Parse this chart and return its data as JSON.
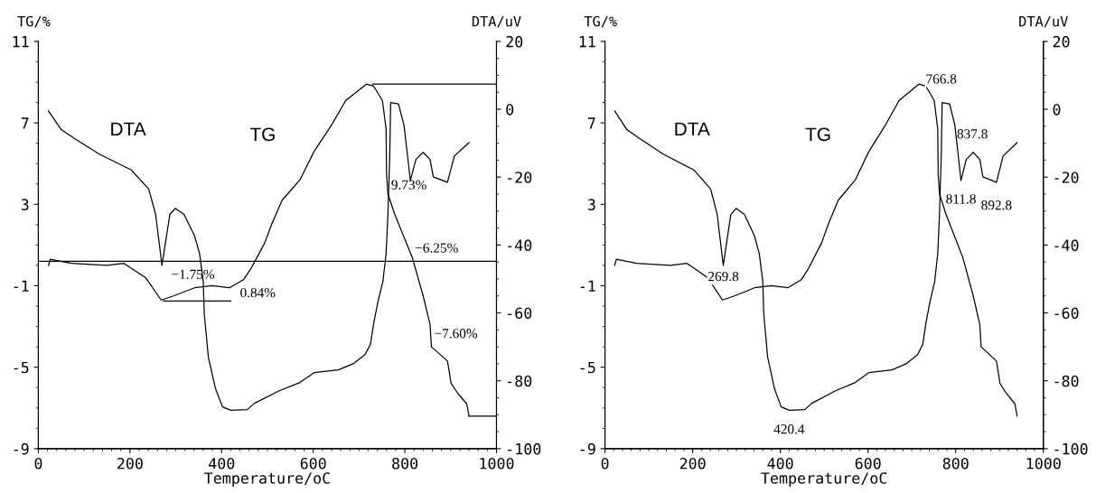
{
  "chart_data": [
    {
      "type": "line",
      "xlabel": "Temperature/oC",
      "ylabel": "TG/%",
      "y2label": "DTA/uV",
      "xlim": [
        0,
        1000
      ],
      "xticks": [
        0,
        200,
        400,
        600,
        800,
        1000
      ],
      "ylim": [
        -9,
        11
      ],
      "yticks": [
        -9,
        -5,
        -1,
        3,
        7,
        11
      ],
      "y2lim": [
        -100,
        20
      ],
      "y2ticks": [
        -100,
        -80,
        -60,
        -40,
        -20,
        0,
        20
      ],
      "grid": false,
      "legend": false,
      "series": [
        {
          "name": "DTA",
          "axis": "y2",
          "color": "#000000",
          "x": [
            22,
            50,
            80,
            134,
            203,
            241,
            256,
            269.8,
            287,
            299,
            318,
            341,
            352,
            360,
            362,
            371,
            387,
            402,
            420,
            456,
            471,
            525,
            571,
            602,
            655,
            687,
            713,
            725,
            732,
            741,
            752,
            759,
            763,
            767,
            769,
            786,
            798,
            805,
            812,
            824,
            840,
            855,
            862,
            893,
            908,
            940
          ],
          "values": [
            -0.5,
            -6,
            -8.7,
            -13.3,
            -17.9,
            -23.5,
            -31,
            -46,
            -31,
            -29.2,
            -31,
            -37.3,
            -42.6,
            -50.8,
            -60,
            -73,
            -82.5,
            -87.7,
            -88.7,
            -88.5,
            -86.7,
            -83,
            -80.5,
            -77.6,
            -76.8,
            -75,
            -72.3,
            -69.2,
            -63,
            -56.9,
            -50.8,
            -42.6,
            -31,
            -13.8,
            2,
            1.6,
            -4.6,
            -12.7,
            -21,
            -14.8,
            -12.7,
            -14.8,
            -19.9,
            -21.5,
            -13.8,
            -9.8
          ]
        },
        {
          "name": "TG",
          "color": "#000000",
          "x": [
            22,
            26,
            72,
            149,
            187,
            234,
            268,
            295,
            341,
            379,
            417,
            448,
            463,
            494,
            509,
            532,
            571,
            602,
            640,
            671,
            716,
            732,
            751,
            759,
            760,
            763,
            778,
            816,
            840,
            855,
            858,
            893,
            901,
            916,
            935,
            940
          ],
          "values": [
            0,
            0.3,
            0.1,
            0,
            0.1,
            -0.6,
            -1.7,
            -1.5,
            -1.1,
            -1,
            -1.1,
            -0.7,
            -0.2,
            1.1,
            2,
            3.2,
            4.2,
            5.6,
            6.9,
            8.1,
            8.9,
            8.8,
            8.1,
            6.7,
            4.5,
            3.5,
            2.5,
            0.4,
            -1.5,
            -2.9,
            -4,
            -4.7,
            -5.8,
            -6.3,
            -6.8,
            -7.4
          ]
        },
        {
          "type": "line",
          "color": "#000000",
          "x": [
            730,
            1000
          ],
          "values": [
            8.9,
            8.9
          ]
        },
        {
          "type": "line",
          "color": "#000000",
          "x": [
            273,
            420
          ],
          "values": [
            -1.75,
            -1.75
          ]
        },
        {
          "type": "line",
          "color": "#000000",
          "x": [
            940,
            1000
          ],
          "values": [
            -7.4,
            -7.4
          ]
        }
      ],
      "ref_lines": [
        {
          "axis": "y",
          "value": 0.2,
          "color": "#000000"
        }
      ],
      "annotations": [
        "−1.75%",
        "0.84%",
        "9.73%",
        "−6.25%",
        "−7.60%"
      ]
    },
    {
      "type": "line",
      "xlabel": "Temperature/oC",
      "ylabel": "TG/%",
      "y2label": "DTA/uV",
      "xlim": [
        0,
        1000
      ],
      "xticks": [
        0,
        200,
        400,
        600,
        800,
        1000
      ],
      "ylim": [
        -9,
        11
      ],
      "yticks": [
        -9,
        -5,
        -1,
        3,
        7,
        11
      ],
      "y2lim": [
        -100,
        20
      ],
      "y2ticks": [
        -100,
        -80,
        -60,
        -40,
        -20,
        0,
        20
      ],
      "grid": false,
      "legend": false,
      "series": [
        {
          "name": "DTA",
          "axis": "y2",
          "color": "#000000",
          "x": [
            22,
            50,
            80,
            134,
            203,
            241,
            256,
            269.8,
            287,
            299,
            318,
            341,
            352,
            360,
            362,
            371,
            387,
            402,
            420,
            456,
            471,
            525,
            571,
            602,
            655,
            687,
            713,
            725,
            732,
            741,
            752,
            759,
            763,
            767,
            769,
            786,
            798,
            805,
            812,
            824,
            840,
            855,
            862,
            893,
            908,
            940
          ],
          "values": [
            -0.5,
            -6,
            -8.7,
            -13.3,
            -17.9,
            -23.5,
            -31,
            -46,
            -31,
            -29.2,
            -31,
            -37.3,
            -42.6,
            -50.8,
            -60,
            -73,
            -82.5,
            -87.7,
            -88.7,
            -88.5,
            -86.7,
            -83,
            -80.5,
            -77.6,
            -76.8,
            -75,
            -72.3,
            -69.2,
            -63,
            -56.9,
            -50.8,
            -42.6,
            -31,
            -13.8,
            2,
            1.6,
            -4.6,
            -12.7,
            -21,
            -14.8,
            -12.7,
            -14.8,
            -19.9,
            -21.5,
            -13.8,
            -9.8
          ]
        },
        {
          "name": "TG",
          "color": "#000000",
          "x": [
            22,
            26,
            72,
            149,
            187,
            234,
            268,
            295,
            341,
            379,
            417,
            448,
            463,
            494,
            509,
            532,
            571,
            602,
            640,
            671,
            716,
            732,
            751,
            759,
            760,
            763,
            778,
            816,
            840,
            855,
            858,
            893,
            901,
            916,
            935,
            940
          ],
          "values": [
            0,
            0.3,
            0.1,
            0,
            0.1,
            -0.6,
            -1.7,
            -1.5,
            -1.1,
            -1,
            -1.1,
            -0.7,
            -0.2,
            1.1,
            2,
            3.2,
            4.2,
            5.6,
            6.9,
            8.1,
            8.9,
            8.8,
            8.1,
            6.7,
            4.5,
            3.5,
            2.5,
            0.4,
            -1.5,
            -2.9,
            -4,
            -4.7,
            -5.8,
            -6.3,
            -6.8,
            -7.4
          ]
        }
      ],
      "annotations": [
        "269.8",
        "420.4",
        "766.8",
        "811.8",
        "837.8",
        "892.8"
      ]
    }
  ]
}
